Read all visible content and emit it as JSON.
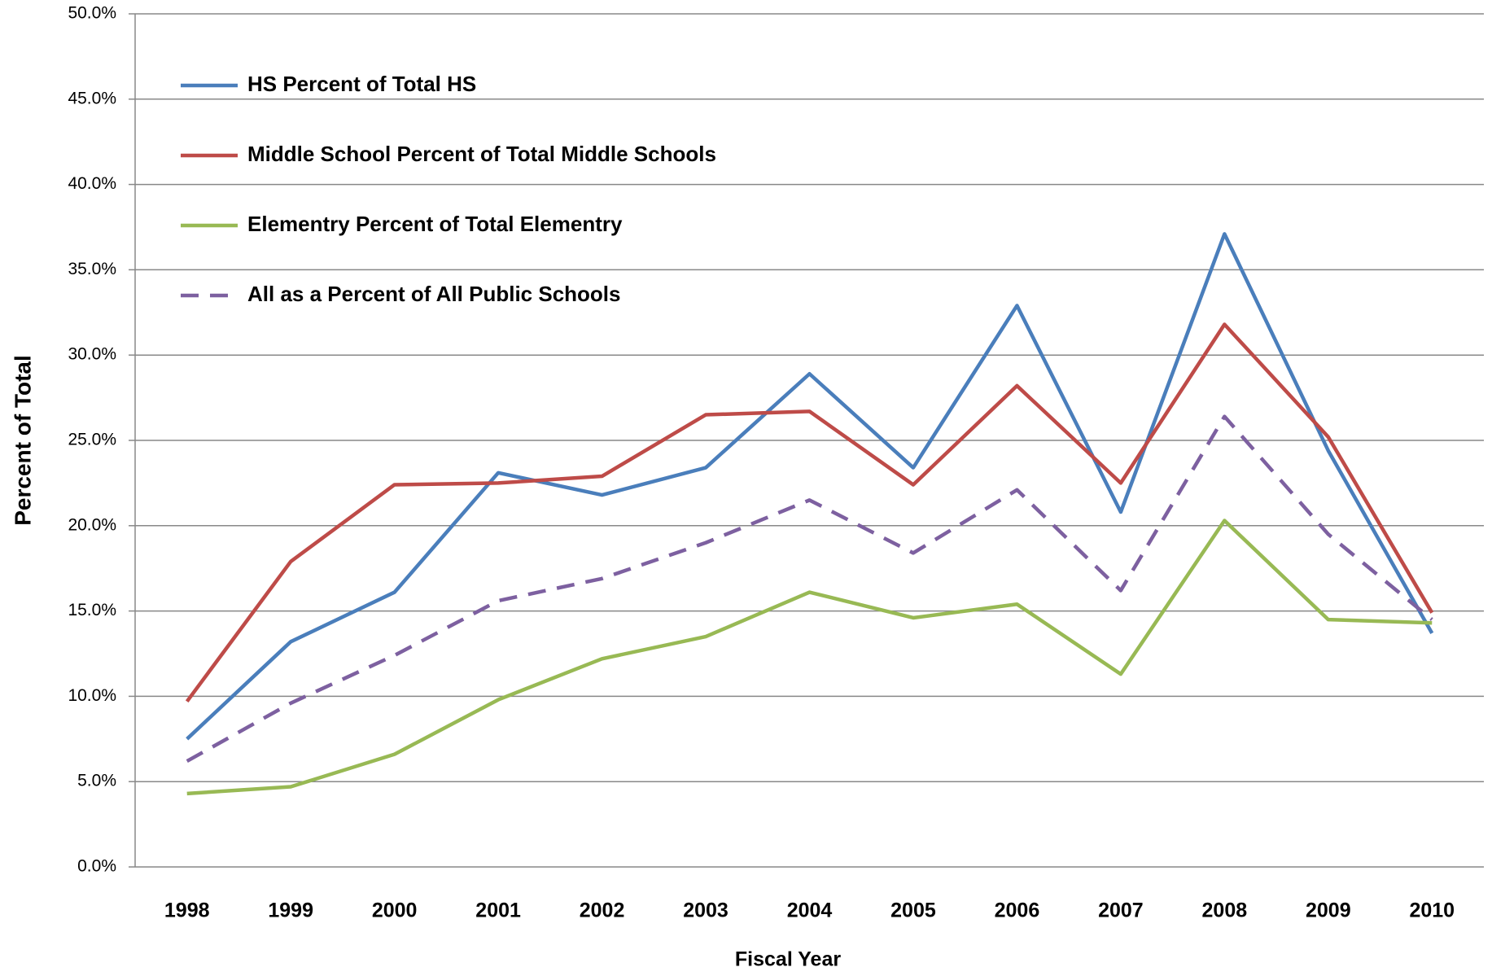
{
  "chart_data": {
    "type": "line",
    "x_label": "Fiscal Year",
    "y_label": "Percent of Total",
    "categories": [
      "1998",
      "1999",
      "2000",
      "2001",
      "2002",
      "2003",
      "2004",
      "2005",
      "2006",
      "2007",
      "2008",
      "2009",
      "2010"
    ],
    "series": [
      {
        "name": "HS Percent of Total HS",
        "color": "#4a7ebb",
        "style": "solid",
        "values": [
          7.5,
          13.2,
          16.1,
          23.1,
          21.8,
          23.4,
          28.9,
          23.4,
          32.9,
          20.8,
          37.1,
          24.4,
          13.7
        ]
      },
      {
        "name": "Middle School Percent of Total Middle Schools",
        "color": "#be4b48",
        "style": "solid",
        "values": [
          9.7,
          17.9,
          22.4,
          22.5,
          22.9,
          26.5,
          26.7,
          22.4,
          28.2,
          22.5,
          31.8,
          25.2,
          14.9
        ]
      },
      {
        "name": "Elementry Percent of Total Elementry",
        "color": "#98b954",
        "style": "solid",
        "values": [
          4.3,
          4.7,
          6.6,
          9.8,
          12.2,
          13.5,
          16.1,
          14.6,
          15.4,
          11.3,
          20.3,
          14.5,
          14.3
        ]
      },
      {
        "name": "All as a Percent of All Public Schools",
        "color": "#7d60a0",
        "style": "dashed",
        "values": [
          6.2,
          9.6,
          12.4,
          15.6,
          16.9,
          19.0,
          21.5,
          18.4,
          22.1,
          16.2,
          26.4,
          19.5,
          14.5
        ]
      }
    ],
    "ylim": [
      0,
      50
    ],
    "yticks": [
      {
        "value": 0,
        "label": "0.0%"
      },
      {
        "value": 5,
        "label": "5.0%"
      },
      {
        "value": 10,
        "label": "10.0%"
      },
      {
        "value": 15,
        "label": "15.0%"
      },
      {
        "value": 20,
        "label": "20.0%"
      },
      {
        "value": 25,
        "label": "25.0%"
      },
      {
        "value": 30,
        "label": "30.0%"
      },
      {
        "value": 35,
        "label": "35.0%"
      },
      {
        "value": 40,
        "label": "40.0%"
      },
      {
        "value": 45,
        "label": "45.0%"
      },
      {
        "value": 50,
        "label": "50.0%"
      }
    ],
    "grid": true,
    "legend": "top-left"
  }
}
